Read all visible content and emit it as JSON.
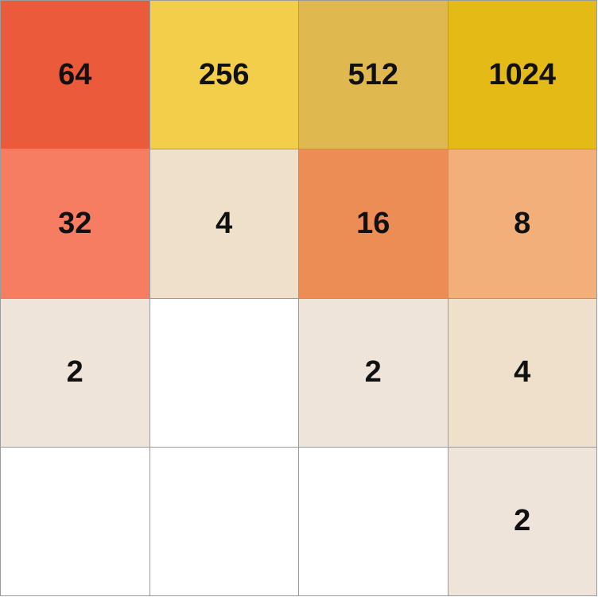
{
  "board": {
    "rows": 4,
    "cols": 4,
    "tiles": [
      {
        "value": "64",
        "color": "#EB5A3A"
      },
      {
        "value": "256",
        "color": "#F2CE4A"
      },
      {
        "value": "512",
        "color": "#E0B850"
      },
      {
        "value": "1024",
        "color": "#E3BA16"
      },
      {
        "value": "32",
        "color": "#F67C62"
      },
      {
        "value": "4",
        "color": "#EEE0CA"
      },
      {
        "value": "16",
        "color": "#EC8D55"
      },
      {
        "value": "8",
        "color": "#F2AF79"
      },
      {
        "value": "2",
        "color": "#EEE4DA"
      },
      {
        "value": "",
        "color": "#FFFFFF"
      },
      {
        "value": "2",
        "color": "#EEE4DA"
      },
      {
        "value": "4",
        "color": "#EEE0CA"
      },
      {
        "value": "",
        "color": "#FFFFFF"
      },
      {
        "value": "",
        "color": "#FFFFFF"
      },
      {
        "value": "",
        "color": "#FFFFFF"
      },
      {
        "value": "2",
        "color": "#EEE4DA"
      }
    ]
  }
}
